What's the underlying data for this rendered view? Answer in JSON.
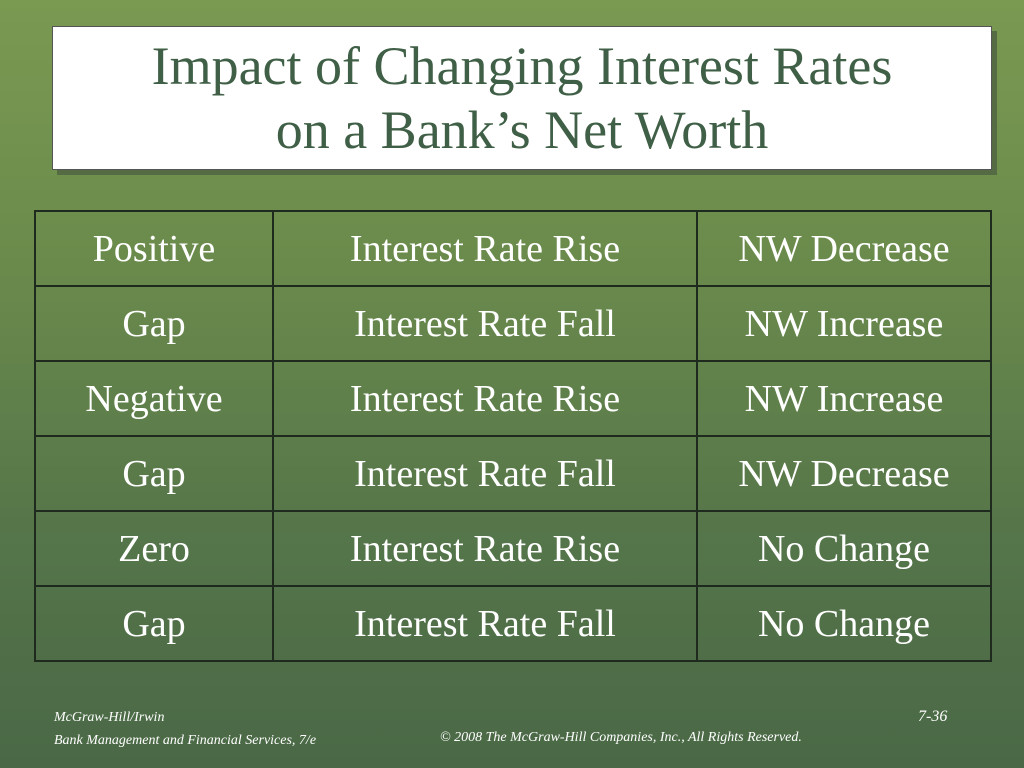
{
  "title": [
    "Impact of Changing Interest Rates",
    "on a Bank’s Net Worth"
  ],
  "table": {
    "rows": [
      [
        "Positive",
        "Interest Rate Rise",
        "NW Decrease"
      ],
      [
        "Gap",
        "Interest Rate Fall",
        "NW Increase"
      ],
      [
        "Negative",
        "Interest Rate Rise",
        "NW Increase"
      ],
      [
        "Gap",
        "Interest Rate Fall",
        "NW Decrease"
      ],
      [
        "Zero",
        "Interest Rate Rise",
        "No Change"
      ],
      [
        "Gap",
        "Interest Rate Fall",
        "No Change"
      ]
    ]
  },
  "footer": {
    "publisher": "McGraw-Hill/Irwin",
    "book": "Bank Management and Financial Services, 7/e",
    "copyright": "© 2008  The McGraw-Hill Companies, Inc., All Rights Reserved.",
    "page": "7-36"
  }
}
